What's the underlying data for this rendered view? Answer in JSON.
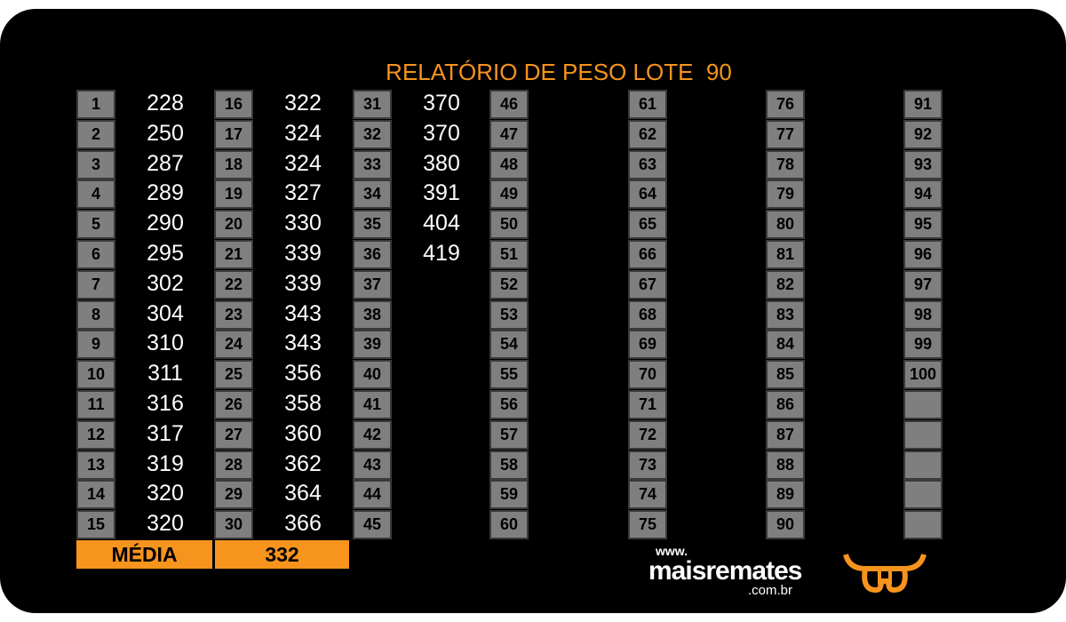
{
  "title": "RELATÓRIO DE PESO LOTE  90",
  "table": {
    "columns": [
      {
        "lots": [
          1,
          2,
          3,
          4,
          5,
          6,
          7,
          8,
          9,
          10,
          11,
          12,
          13,
          14,
          15
        ],
        "weights": [
          228,
          250,
          287,
          289,
          290,
          295,
          302,
          304,
          310,
          311,
          316,
          317,
          319,
          320,
          320
        ]
      },
      {
        "lots": [
          16,
          17,
          18,
          19,
          20,
          21,
          22,
          23,
          24,
          25,
          26,
          27,
          28,
          29,
          30
        ],
        "weights": [
          322,
          324,
          324,
          327,
          330,
          339,
          339,
          343,
          343,
          356,
          358,
          360,
          362,
          364,
          366
        ]
      },
      {
        "lots": [
          31,
          32,
          33,
          34,
          35,
          36,
          37,
          38,
          39,
          40,
          41,
          42,
          43,
          44,
          45
        ],
        "weights": [
          370,
          370,
          380,
          391,
          404,
          419
        ]
      },
      {
        "lots": [
          46,
          47,
          48,
          49,
          50,
          51,
          52,
          53,
          54,
          55,
          56,
          57,
          58,
          59,
          60
        ],
        "weights": []
      },
      {
        "lots": [
          61,
          62,
          63,
          64,
          65,
          66,
          67,
          68,
          69,
          70,
          71,
          72,
          73,
          74,
          75
        ],
        "weights": []
      },
      {
        "lots": [
          76,
          77,
          78,
          79,
          80,
          81,
          82,
          83,
          84,
          85,
          86,
          87,
          88,
          89,
          90
        ],
        "weights": []
      },
      {
        "lots": [
          91,
          92,
          93,
          94,
          95,
          96,
          97,
          98,
          99,
          100
        ],
        "weights": []
      }
    ]
  },
  "average": {
    "label": "MÉDIA",
    "value": 332
  },
  "logo": {
    "prefix": "www.",
    "name": "maisremates",
    "suffix": ".com.br"
  }
}
